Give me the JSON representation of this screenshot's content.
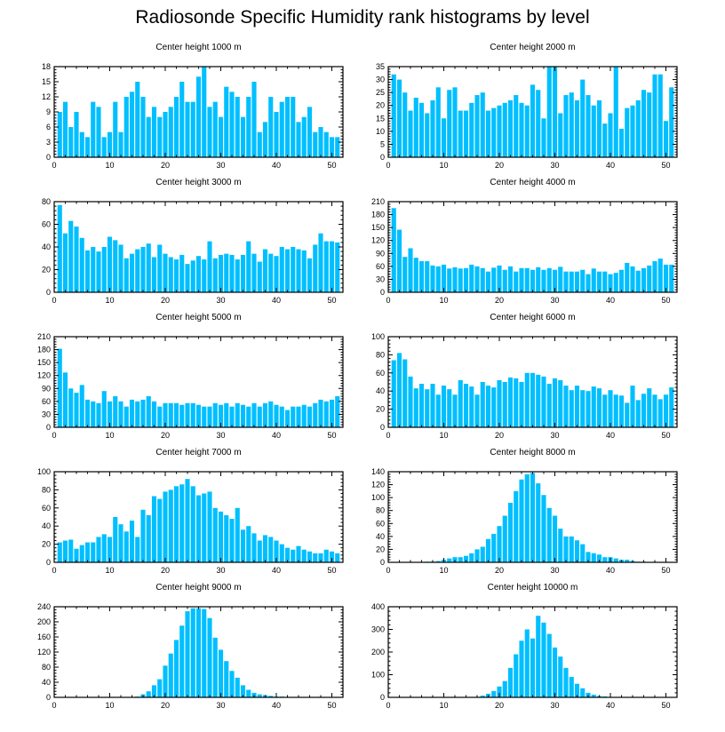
{
  "figure_title": "Radiosonde Specific Humidity rank histograms by level",
  "colors": {
    "bar": "#00BFFF",
    "axis": "#000000",
    "background": "#FFFFFF"
  },
  "chart_data": [
    {
      "type": "bar",
      "title": "Center height 1000 m",
      "xlim": [
        0,
        52
      ],
      "xticks": [
        0,
        10,
        20,
        30,
        40,
        50
      ],
      "ylim": [
        0,
        18
      ],
      "yticks": [
        0,
        3,
        6,
        9,
        12,
        15,
        18
      ],
      "categories": [
        1,
        2,
        3,
        4,
        5,
        6,
        7,
        8,
        9,
        10,
        11,
        12,
        13,
        14,
        15,
        16,
        17,
        18,
        19,
        20,
        21,
        22,
        23,
        24,
        25,
        26,
        27,
        28,
        29,
        30,
        31,
        32,
        33,
        34,
        35,
        36,
        37,
        38,
        39,
        40,
        41,
        42,
        43,
        44,
        45,
        46,
        47,
        48,
        49,
        50,
        51
      ],
      "values": [
        9,
        11,
        6,
        9,
        5,
        4,
        11,
        10,
        4,
        5,
        11,
        5,
        12,
        13,
        15,
        12,
        8,
        10,
        8,
        9,
        10,
        12,
        15,
        11,
        11,
        16,
        18,
        10,
        11,
        8,
        14,
        13,
        12,
        8,
        12,
        15,
        5,
        7,
        12,
        9,
        11,
        12,
        12,
        7,
        8,
        10,
        5,
        6,
        5,
        4,
        4
      ]
    },
    {
      "type": "bar",
      "title": "Center height 2000 m",
      "xlim": [
        0,
        52
      ],
      "xticks": [
        0,
        10,
        20,
        30,
        40,
        50
      ],
      "ylim": [
        0,
        35
      ],
      "yticks": [
        0,
        5,
        10,
        15,
        20,
        25,
        30,
        35
      ],
      "categories": [
        1,
        2,
        3,
        4,
        5,
        6,
        7,
        8,
        9,
        10,
        11,
        12,
        13,
        14,
        15,
        16,
        17,
        18,
        19,
        20,
        21,
        22,
        23,
        24,
        25,
        26,
        27,
        28,
        29,
        30,
        31,
        32,
        33,
        34,
        35,
        36,
        37,
        38,
        39,
        40,
        41,
        42,
        43,
        44,
        45,
        46,
        47,
        48,
        49,
        50,
        51
      ],
      "values": [
        32,
        30,
        25,
        18,
        23,
        21,
        17,
        22,
        27,
        15,
        26,
        27,
        18,
        18,
        21,
        24,
        25,
        18,
        19,
        20,
        21,
        22,
        24,
        21,
        20,
        28,
        26,
        15,
        35,
        35,
        17,
        24,
        25,
        22,
        30,
        24,
        20,
        22,
        13,
        17,
        35,
        11,
        19,
        20,
        22,
        26,
        25,
        32,
        32,
        14,
        27
      ]
    },
    {
      "type": "bar",
      "title": "Center height 3000 m",
      "xlim": [
        0,
        52
      ],
      "xticks": [
        0,
        10,
        20,
        30,
        40,
        50
      ],
      "ylim": [
        0,
        80
      ],
      "yticks": [
        0,
        20,
        40,
        60,
        80
      ],
      "categories": [
        1,
        2,
        3,
        4,
        5,
        6,
        7,
        8,
        9,
        10,
        11,
        12,
        13,
        14,
        15,
        16,
        17,
        18,
        19,
        20,
        21,
        22,
        23,
        24,
        25,
        26,
        27,
        28,
        29,
        30,
        31,
        32,
        33,
        34,
        35,
        36,
        37,
        38,
        39,
        40,
        41,
        42,
        43,
        44,
        45,
        46,
        47,
        48,
        49,
        50,
        51
      ],
      "values": [
        77,
        52,
        63,
        58,
        48,
        37,
        40,
        36,
        40,
        49,
        46,
        42,
        30,
        34,
        38,
        40,
        43,
        31,
        42,
        34,
        31,
        29,
        33,
        25,
        28,
        32,
        29,
        45,
        30,
        33,
        34,
        33,
        29,
        33,
        45,
        34,
        27,
        38,
        34,
        32,
        40,
        38,
        40,
        38,
        37,
        30,
        42,
        52,
        45,
        45,
        44
      ]
    },
    {
      "type": "bar",
      "title": "Center height 4000 m",
      "xlim": [
        0,
        52
      ],
      "xticks": [
        0,
        10,
        20,
        30,
        40,
        50
      ],
      "ylim": [
        0,
        210
      ],
      "yticks": [
        0,
        30,
        60,
        90,
        120,
        150,
        180,
        210
      ],
      "categories": [
        1,
        2,
        3,
        4,
        5,
        6,
        7,
        8,
        9,
        10,
        11,
        12,
        13,
        14,
        15,
        16,
        17,
        18,
        19,
        20,
        21,
        22,
        23,
        24,
        25,
        26,
        27,
        28,
        29,
        30,
        31,
        32,
        33,
        34,
        35,
        36,
        37,
        38,
        39,
        40,
        41,
        42,
        43,
        44,
        45,
        46,
        47,
        48,
        49,
        50,
        51
      ],
      "values": [
        195,
        145,
        82,
        102,
        80,
        72,
        72,
        62,
        60,
        64,
        55,
        58,
        55,
        56,
        64,
        60,
        56,
        48,
        57,
        62,
        52,
        60,
        48,
        56,
        56,
        52,
        58,
        52,
        56,
        52,
        59,
        48,
        48,
        48,
        52,
        42,
        55,
        48,
        48,
        42,
        45,
        52,
        68,
        60,
        50,
        56,
        62,
        72,
        78,
        64,
        64
      ]
    },
    {
      "type": "bar",
      "title": "Center height 5000 m",
      "xlim": [
        0,
        52
      ],
      "xticks": [
        0,
        10,
        20,
        30,
        40,
        50
      ],
      "ylim": [
        0,
        210
      ],
      "yticks": [
        0,
        30,
        60,
        90,
        120,
        150,
        180,
        210
      ],
      "categories": [
        1,
        2,
        3,
        4,
        5,
        6,
        7,
        8,
        9,
        10,
        11,
        12,
        13,
        14,
        15,
        16,
        17,
        18,
        19,
        20,
        21,
        22,
        23,
        24,
        25,
        26,
        27,
        28,
        29,
        30,
        31,
        32,
        33,
        34,
        35,
        36,
        37,
        38,
        39,
        40,
        41,
        42,
        43,
        44,
        45,
        46,
        47,
        48,
        49,
        50,
        51
      ],
      "values": [
        182,
        127,
        90,
        80,
        98,
        64,
        60,
        56,
        84,
        60,
        72,
        60,
        48,
        64,
        60,
        64,
        72,
        60,
        48,
        56,
        56,
        56,
        52,
        56,
        56,
        52,
        48,
        48,
        56,
        52,
        56,
        48,
        56,
        52,
        48,
        56,
        48,
        56,
        60,
        52,
        48,
        40,
        48,
        48,
        52,
        48,
        56,
        64,
        60,
        64,
        72
      ]
    },
    {
      "type": "bar",
      "title": "Center height 6000 m",
      "xlim": [
        0,
        52
      ],
      "xticks": [
        0,
        10,
        20,
        30,
        40,
        50
      ],
      "ylim": [
        0,
        100
      ],
      "yticks": [
        0,
        20,
        40,
        60,
        80,
        100
      ],
      "categories": [
        1,
        2,
        3,
        4,
        5,
        6,
        7,
        8,
        9,
        10,
        11,
        12,
        13,
        14,
        15,
        16,
        17,
        18,
        19,
        20,
        21,
        22,
        23,
        24,
        25,
        26,
        27,
        28,
        29,
        30,
        31,
        32,
        33,
        34,
        35,
        36,
        37,
        38,
        39,
        40,
        41,
        42,
        43,
        44,
        45,
        46,
        47,
        48,
        49,
        50,
        51
      ],
      "values": [
        74,
        82,
        75,
        56,
        43,
        48,
        42,
        48,
        36,
        46,
        42,
        36,
        52,
        48,
        45,
        36,
        50,
        46,
        44,
        52,
        50,
        55,
        54,
        50,
        60,
        60,
        58,
        56,
        48,
        54,
        52,
        46,
        41,
        46,
        41,
        40,
        45,
        43,
        36,
        41,
        36,
        35,
        27,
        46,
        30,
        37,
        43,
        36,
        31,
        36,
        44
      ]
    },
    {
      "type": "bar",
      "title": "Center height 7000 m",
      "xlim": [
        0,
        52
      ],
      "xticks": [
        0,
        10,
        20,
        30,
        40,
        50
      ],
      "ylim": [
        0,
        100
      ],
      "yticks": [
        0,
        20,
        40,
        60,
        80,
        100
      ],
      "categories": [
        1,
        2,
        3,
        4,
        5,
        6,
        7,
        8,
        9,
        10,
        11,
        12,
        13,
        14,
        15,
        16,
        17,
        18,
        19,
        20,
        21,
        22,
        23,
        24,
        25,
        26,
        27,
        28,
        29,
        30,
        31,
        32,
        33,
        34,
        35,
        36,
        37,
        38,
        39,
        40,
        41,
        42,
        43,
        44,
        45,
        46,
        47,
        48,
        49,
        50,
        51
      ],
      "values": [
        22,
        24,
        25,
        15,
        19,
        22,
        22,
        28,
        31,
        28,
        50,
        42,
        34,
        46,
        28,
        58,
        52,
        73,
        70,
        78,
        80,
        84,
        86,
        92,
        84,
        74,
        76,
        78,
        60,
        56,
        52,
        48,
        60,
        36,
        40,
        32,
        24,
        30,
        28,
        24,
        20,
        16,
        14,
        18,
        14,
        12,
        10,
        10,
        14,
        12,
        10
      ]
    },
    {
      "type": "bar",
      "title": "Center height 8000 m",
      "xlim": [
        0,
        52
      ],
      "xticks": [
        0,
        10,
        20,
        30,
        40,
        50
      ],
      "ylim": [
        0,
        140
      ],
      "yticks": [
        0,
        20,
        40,
        60,
        80,
        100,
        120,
        140
      ],
      "categories": [
        1,
        2,
        3,
        4,
        5,
        6,
        7,
        8,
        9,
        10,
        11,
        12,
        13,
        14,
        15,
        16,
        17,
        18,
        19,
        20,
        21,
        22,
        23,
        24,
        25,
        26,
        27,
        28,
        29,
        30,
        31,
        32,
        33,
        34,
        35,
        36,
        37,
        38,
        39,
        40,
        41,
        42,
        43,
        44,
        45,
        46,
        47,
        48,
        49,
        50,
        51
      ],
      "values": [
        0,
        0,
        0,
        0,
        0,
        0,
        1,
        1,
        2,
        4,
        6,
        8,
        8,
        10,
        14,
        20,
        24,
        36,
        44,
        56,
        72,
        92,
        110,
        128,
        136,
        138,
        122,
        104,
        84,
        72,
        52,
        40,
        40,
        34,
        28,
        16,
        14,
        12,
        8,
        8,
        6,
        4,
        4,
        2,
        1,
        1,
        0,
        0,
        0,
        0,
        0
      ]
    },
    {
      "type": "bar",
      "title": "Center height 9000 m",
      "xlim": [
        0,
        52
      ],
      "xticks": [
        0,
        10,
        20,
        30,
        40,
        50
      ],
      "ylim": [
        0,
        240
      ],
      "yticks": [
        0,
        40,
        80,
        120,
        160,
        200,
        240
      ],
      "categories": [
        1,
        2,
        3,
        4,
        5,
        6,
        7,
        8,
        9,
        10,
        11,
        12,
        13,
        14,
        15,
        16,
        17,
        18,
        19,
        20,
        21,
        22,
        23,
        24,
        25,
        26,
        27,
        28,
        29,
        30,
        31,
        32,
        33,
        34,
        35,
        36,
        37,
        38,
        39,
        40,
        41,
        42,
        43,
        44,
        45,
        46,
        47,
        48,
        49,
        50,
        51
      ],
      "values": [
        0,
        0,
        0,
        0,
        0,
        0,
        0,
        0,
        0,
        0,
        0,
        0,
        0,
        0,
        2,
        8,
        16,
        32,
        48,
        84,
        116,
        152,
        190,
        228,
        236,
        236,
        234,
        210,
        158,
        126,
        96,
        70,
        52,
        32,
        20,
        12,
        8,
        6,
        4,
        2,
        2,
        1,
        1,
        0,
        0,
        0,
        0,
        0,
        0,
        0,
        0
      ]
    },
    {
      "type": "bar",
      "title": "Center height 10000 m",
      "xlim": [
        0,
        52
      ],
      "xticks": [
        0,
        10,
        20,
        30,
        40,
        50
      ],
      "ylim": [
        0,
        400
      ],
      "yticks": [
        0,
        100,
        200,
        300,
        400
      ],
      "categories": [
        1,
        2,
        3,
        4,
        5,
        6,
        7,
        8,
        9,
        10,
        11,
        12,
        13,
        14,
        15,
        16,
        17,
        18,
        19,
        20,
        21,
        22,
        23,
        24,
        25,
        26,
        27,
        28,
        29,
        30,
        31,
        32,
        33,
        34,
        35,
        36,
        37,
        38,
        39,
        40,
        41,
        42,
        43,
        44,
        45,
        46,
        47,
        48,
        49,
        50,
        51
      ],
      "values": [
        0,
        0,
        0,
        0,
        0,
        0,
        0,
        0,
        0,
        0,
        0,
        0,
        0,
        0,
        0,
        2,
        8,
        16,
        28,
        48,
        72,
        130,
        190,
        250,
        300,
        260,
        360,
        330,
        280,
        220,
        180,
        130,
        90,
        60,
        40,
        20,
        12,
        6,
        4,
        2,
        1,
        0,
        0,
        0,
        0,
        0,
        0,
        0,
        0,
        0,
        0
      ]
    }
  ]
}
